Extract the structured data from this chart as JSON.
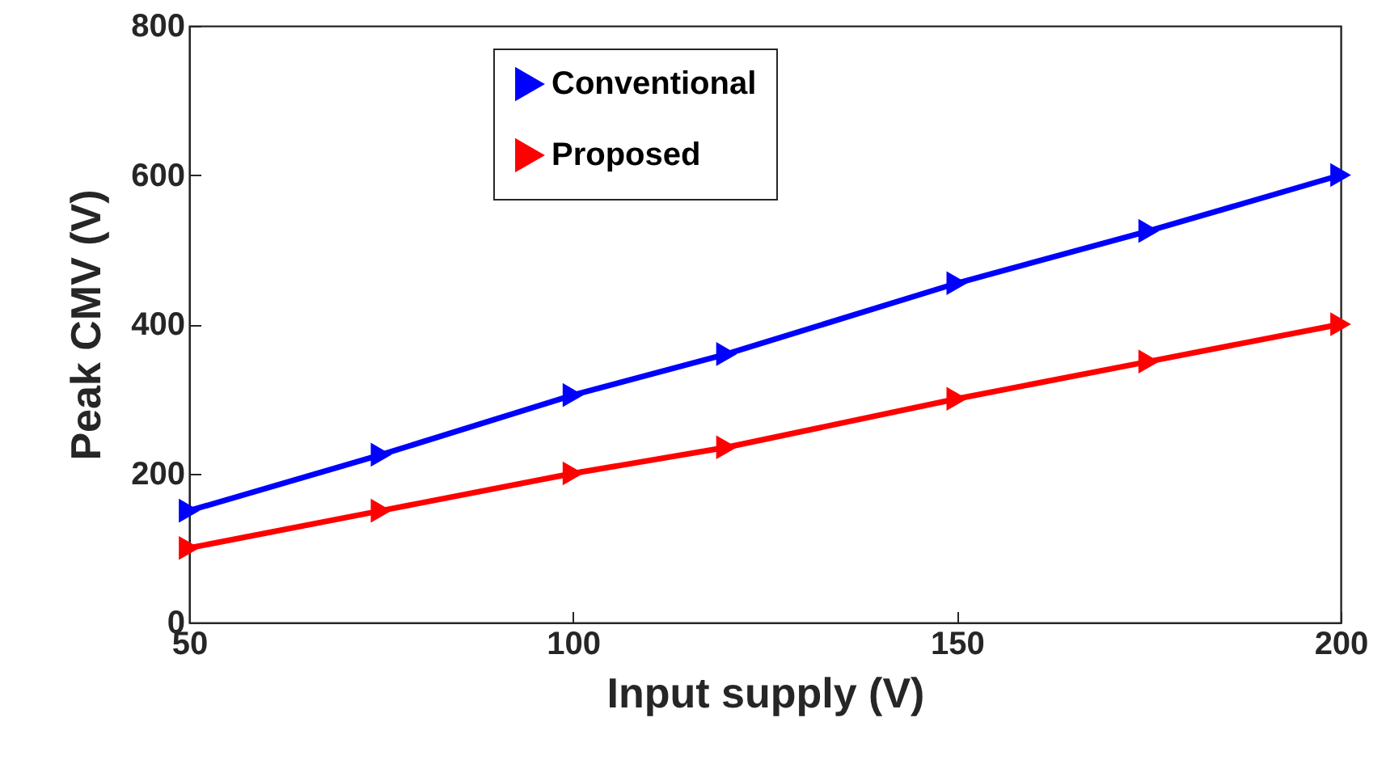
{
  "chart_data": {
    "type": "line",
    "xlabel": "Input supply (V)",
    "ylabel": "Peak CMV (V)",
    "x": [
      50,
      75,
      100,
      120,
      150,
      175,
      200
    ],
    "series": [
      {
        "name": "Conventional",
        "color": "#0000ff",
        "values": [
          150,
          225,
          305,
          360,
          455,
          525,
          600
        ]
      },
      {
        "name": "Proposed",
        "color": "#ff0000",
        "values": [
          100,
          150,
          200,
          235,
          300,
          350,
          400
        ]
      }
    ],
    "xlim": [
      50,
      200
    ],
    "xticks": [
      50,
      100,
      150,
      200
    ],
    "ylim": [
      0,
      800
    ],
    "yticks": [
      0,
      200,
      400,
      600,
      800
    ],
    "grid": false,
    "legend": "top",
    "marker": "triangle",
    "line_style": "solid"
  }
}
